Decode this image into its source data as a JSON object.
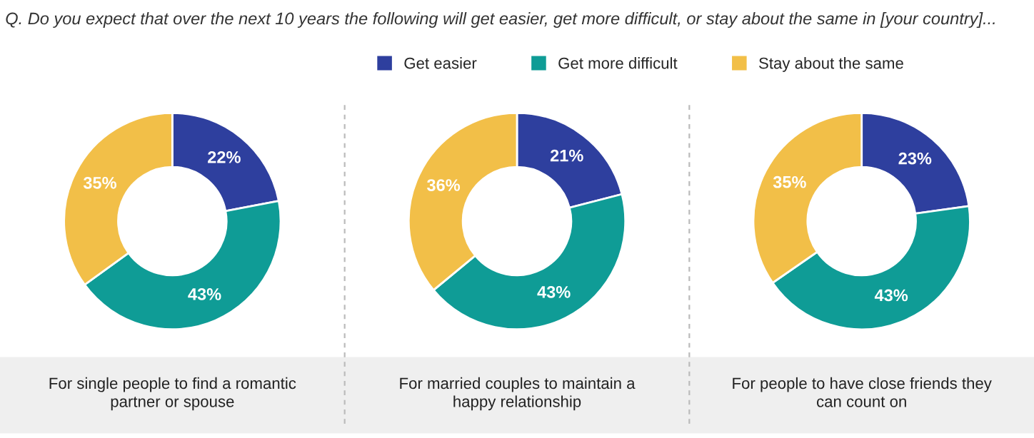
{
  "chart_data": [
    {
      "type": "donut",
      "title": "Q. Do you expect that over the next 10 years the following will get easier, get more difficult, or stay about the same in [your country]...",
      "xlabel": "For single people to find a romantic\npartner or spouse",
      "categories": [
        "Get easier",
        "Get more difficult",
        "Stay about the same"
      ],
      "values": [
        22,
        43,
        35
      ],
      "colors": [
        "#2e3f9e",
        "#0f9c96",
        "#f2bf48"
      ],
      "value_labels": [
        "22%",
        "43%",
        "35%"
      ],
      "legend": "top"
    },
    {
      "type": "donut",
      "xlabel": "For married couples to maintain a\nhappy relationship",
      "categories": [
        null,
        null,
        null
      ],
      "values": [
        21,
        43,
        36
      ],
      "colors": [
        "#2e3f9e",
        "#0f9c96",
        "#f2bf48"
      ],
      "value_labels": [
        "21%",
        "43%",
        "36%"
      ]
    },
    {
      "type": "donut",
      "xlabel": "For people to have close friends they\ncan count on",
      "categories": [
        null,
        null,
        null
      ],
      "values": [
        23,
        43,
        35
      ],
      "colors": [
        "#2e3f9e",
        "#0f9c96",
        "#f2bf48"
      ],
      "value_labels": [
        "23%",
        "43%",
        "35%"
      ]
    }
  ]
}
